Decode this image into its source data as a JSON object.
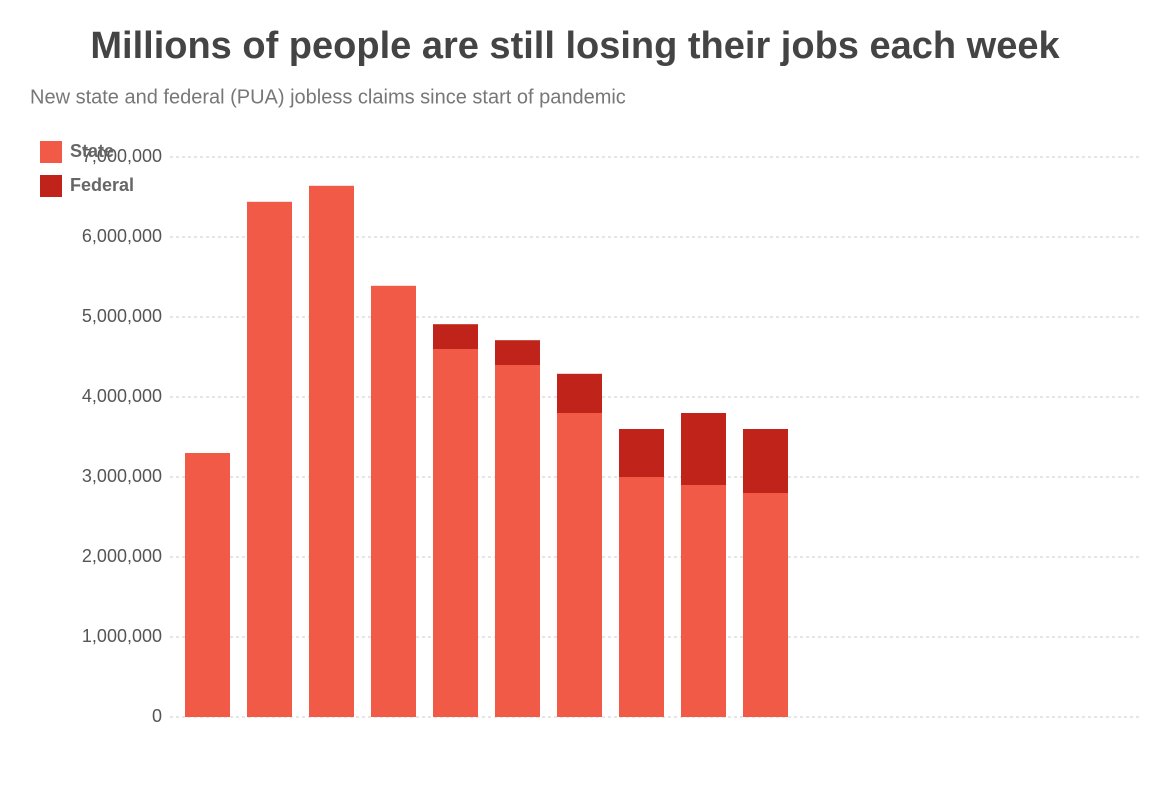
{
  "chart_data": {
    "type": "stacked-bar",
    "title": "Millions of people are still losing their jobs each week",
    "subtitle": "New state and federal (PUA) jobless claims since start of pandemic",
    "categories": [
      null,
      null,
      null,
      null,
      null,
      null,
      null,
      null,
      null,
      null
    ],
    "series": [
      {
        "name": "State",
        "color": "#f05a46",
        "values": [
          3300000,
          6440000,
          6640000,
          5390000,
          4600000,
          4400000,
          3800000,
          3000000,
          2900000,
          2800000
        ]
      },
      {
        "name": "Federal",
        "color": "#c0231a",
        "values": [
          0,
          0,
          0,
          0,
          310000,
          310000,
          490000,
          600000,
          900000,
          800000
        ]
      }
    ],
    "ylim": [
      0,
      7000000
    ],
    "yticks": [
      {
        "value": 0,
        "label": "0"
      },
      {
        "value": 1000000,
        "label": "1,000,000"
      },
      {
        "value": 2000000,
        "label": "2,000,000"
      },
      {
        "value": 3000000,
        "label": "3,000,000"
      },
      {
        "value": 4000000,
        "label": "4,000,000"
      },
      {
        "value": 5000000,
        "label": "5,000,000"
      },
      {
        "value": 6000000,
        "label": "6,000,000"
      },
      {
        "value": 7000000,
        "label": "7,000,000"
      }
    ],
    "grid": true,
    "legend": "top-left"
  }
}
